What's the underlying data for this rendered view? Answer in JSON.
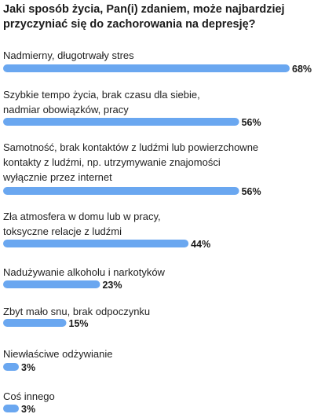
{
  "title": "Jaki sposób życia, Pan(i) zdaniem, może najbardziej przyczyniać się do zachorowania na depresję?",
  "chart_data": {
    "type": "bar",
    "orientation": "horizontal",
    "categories": [
      [
        "Nadmierny, długotrwały stres"
      ],
      [
        "Szybkie tempo życia, brak czasu dla siebie,",
        "nadmiar obowiązków, pracy"
      ],
      [
        "Samotność, brak kontaktów z ludźmi lub powierzchowne",
        "kontakty z ludźmi, np. utrzymywanie znajomości",
        "wyłącznie przez internet"
      ],
      [
        "Zła atmosfera w domu lub w pracy,",
        "toksyczne relacje z ludźmi"
      ],
      [
        "Nadużywanie alkoholu i narkotyków"
      ],
      [
        "Zbyt mało snu, brak odpoczynku"
      ],
      [
        "Niewłaściwe odżywianie"
      ],
      [
        "Coś innego"
      ]
    ],
    "values": [
      68,
      56,
      56,
      44,
      23,
      15,
      3,
      3
    ],
    "value_labels": [
      "68%",
      "56%",
      "56%",
      "44%",
      "23%",
      "15%",
      "3%",
      "3%"
    ],
    "xlim": [
      0,
      68
    ],
    "bar_color": "#6aa7f0",
    "grid": false,
    "legend": "none"
  }
}
